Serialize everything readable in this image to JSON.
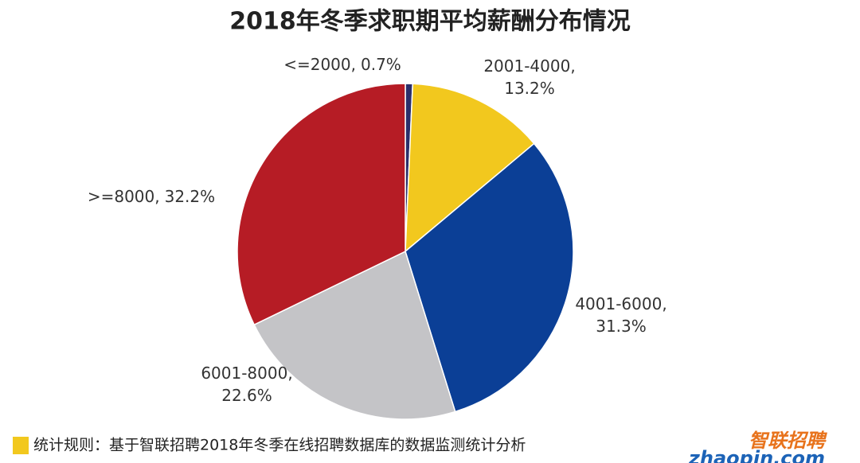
{
  "chart_data": {
    "type": "pie",
    "title": "2018年冬季求职期平均薪酬分布情况",
    "categories": [
      "<=2000",
      "2001-4000",
      "4001-6000",
      "6001-8000",
      ">=8000"
    ],
    "values": [
      0.7,
      13.2,
      31.3,
      22.6,
      32.2
    ],
    "value_labels": [
      "0.7%",
      "13.2%",
      "31.3%",
      "22.6%",
      "32.2%"
    ],
    "label_separator": ",",
    "colors": [
      "#2b2f6b",
      "#f2c81e",
      "#0b3f96",
      "#c4c4c7",
      "#b61c25"
    ]
  },
  "footer": {
    "note": "统计规则：基于智联招聘2018年冬季在线招聘数据库的数据监测统计分析"
  },
  "logo": {
    "name": "智联招聘",
    "url": "zhaopin.com"
  }
}
